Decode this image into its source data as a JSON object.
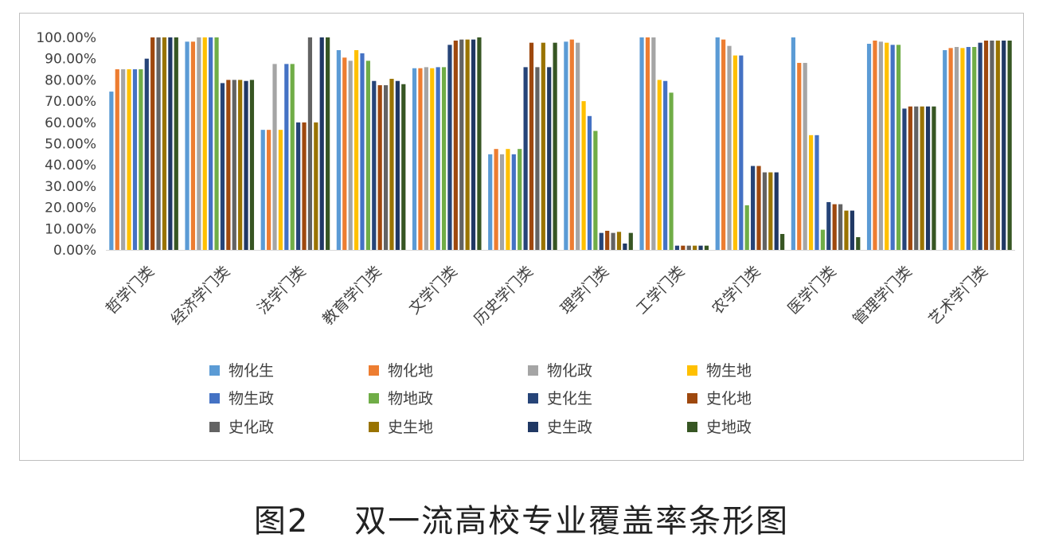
{
  "chart_data": {
    "type": "bar",
    "title": "",
    "xlabel": "",
    "ylabel": "",
    "ylim": [
      0,
      1
    ],
    "yticks": [
      "0.00%",
      "10.00%",
      "20.00%",
      "30.00%",
      "40.00%",
      "50.00%",
      "60.00%",
      "70.00%",
      "80.00%",
      "90.00%",
      "100.00%"
    ],
    "grid": false,
    "legend_position": "bottom",
    "categories": [
      "哲学门类",
      "经济学门类",
      "法学门类",
      "教育学门类",
      "文学门类",
      "历史学门类",
      "理学门类",
      "工学门类",
      "农学门类",
      "医学门类",
      "管理学门类",
      "艺术学门类"
    ],
    "series": [
      {
        "name": "物化生",
        "color": "#5B9BD5",
        "values": [
          0.745,
          0.98,
          0.565,
          0.94,
          0.855,
          0.45,
          0.98,
          1.0,
          1.0,
          1.0,
          0.97,
          0.94
        ]
      },
      {
        "name": "物化地",
        "color": "#ED7D31",
        "values": [
          0.85,
          0.98,
          0.565,
          0.905,
          0.855,
          0.475,
          0.99,
          1.0,
          0.99,
          0.88,
          0.985,
          0.95
        ]
      },
      {
        "name": "物化政",
        "color": "#A5A5A5",
        "values": [
          0.85,
          1.0,
          0.875,
          0.89,
          0.86,
          0.45,
          0.975,
          1.0,
          0.96,
          0.88,
          0.98,
          0.955
        ]
      },
      {
        "name": "物生地",
        "color": "#FFC000",
        "values": [
          0.85,
          1.0,
          0.565,
          0.94,
          0.855,
          0.475,
          0.7,
          0.8,
          0.915,
          0.54,
          0.975,
          0.95
        ]
      },
      {
        "name": "物生政",
        "color": "#4472C4",
        "values": [
          0.85,
          1.0,
          0.875,
          0.925,
          0.86,
          0.45,
          0.63,
          0.795,
          0.915,
          0.54,
          0.965,
          0.955
        ]
      },
      {
        "name": "物地政",
        "color": "#70AD47",
        "values": [
          0.85,
          1.0,
          0.875,
          0.89,
          0.86,
          0.475,
          0.56,
          0.74,
          0.21,
          0.095,
          0.965,
          0.955
        ]
      },
      {
        "name": "史化生",
        "color": "#264478",
        "values": [
          0.9,
          0.785,
          0.6,
          0.795,
          0.965,
          0.86,
          0.08,
          0.02,
          0.395,
          0.225,
          0.665,
          0.975
        ]
      },
      {
        "name": "史化地",
        "color": "#9E480E",
        "values": [
          1.0,
          0.8,
          0.6,
          0.775,
          0.985,
          0.975,
          0.09,
          0.02,
          0.395,
          0.215,
          0.675,
          0.985
        ]
      },
      {
        "name": "史化政",
        "color": "#636363",
        "values": [
          1.0,
          0.8,
          1.0,
          0.775,
          0.99,
          0.86,
          0.08,
          0.02,
          0.365,
          0.215,
          0.675,
          0.985
        ]
      },
      {
        "name": "史生地",
        "color": "#997300",
        "values": [
          1.0,
          0.8,
          0.6,
          0.805,
          0.99,
          0.975,
          0.085,
          0.02,
          0.365,
          0.185,
          0.675,
          0.985
        ]
      },
      {
        "name": "史生政",
        "color": "#203864",
        "values": [
          1.0,
          0.795,
          1.0,
          0.795,
          0.99,
          0.86,
          0.03,
          0.02,
          0.365,
          0.185,
          0.675,
          0.985
        ]
      },
      {
        "name": "史地政",
        "color": "#375623",
        "values": [
          1.0,
          0.8,
          1.0,
          0.78,
          1.0,
          0.975,
          0.08,
          0.02,
          0.075,
          0.06,
          0.675,
          0.985
        ]
      }
    ]
  },
  "caption": {
    "label": "图2",
    "text": "双一流高校专业覆盖率条形图"
  }
}
